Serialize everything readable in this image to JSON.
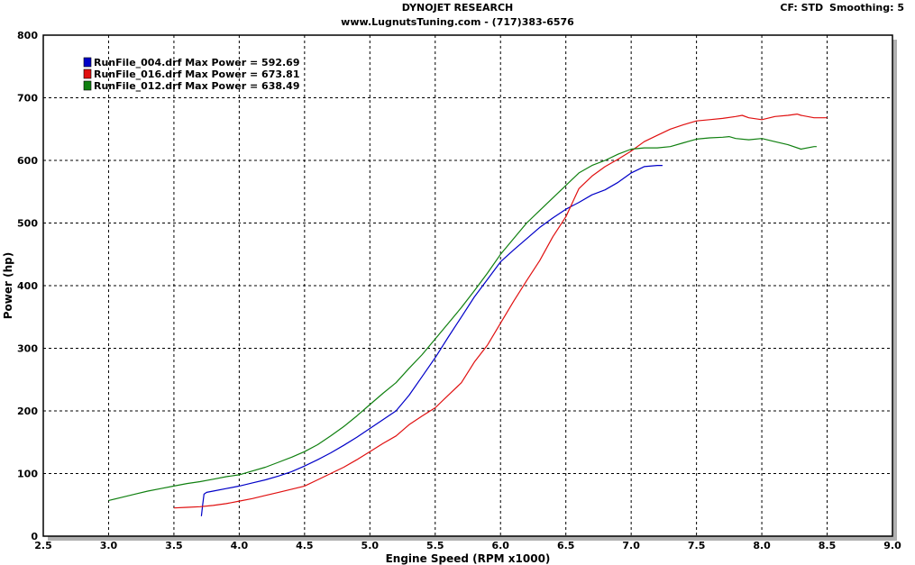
{
  "header": {
    "title": "DYNOJET RESEARCH",
    "subtitle": "www.LugnutsTuning.com - (717)383-6576",
    "cf_text": "CF: STD",
    "smoothing_text": "Smoothing: 5"
  },
  "colors": {
    "background": "#ffffff",
    "plot_border": "#000000",
    "grid": "#000000",
    "shadow": "#b0b0b0",
    "blue": "#0000c8",
    "red": "#e01010",
    "green": "#108010"
  },
  "chart_data": {
    "type": "line",
    "xlabel": "Engine Speed (RPM x1000)",
    "ylabel": "Power (hp)",
    "xlim": [
      2.5,
      9.0
    ],
    "ylim": [
      0,
      800
    ],
    "xticks": [
      "2.5",
      "3.0",
      "3.5",
      "4.0",
      "4.5",
      "5.0",
      "5.5",
      "6.0",
      "6.5",
      "7.0",
      "7.5",
      "8.0",
      "8.5",
      "9.0"
    ],
    "yticks": [
      "0",
      "100",
      "200",
      "300",
      "400",
      "500",
      "600",
      "700",
      "800"
    ],
    "grid": true,
    "grid_style": "dashed",
    "legend_placement": "top-left",
    "series": [
      {
        "name": "RunFile_004.drf Max Power = 592.69",
        "color": "blue",
        "x": [
          3.71,
          3.72,
          3.73,
          3.75,
          3.8,
          3.9,
          4.0,
          4.1,
          4.2,
          4.3,
          4.4,
          4.5,
          4.6,
          4.7,
          4.8,
          4.9,
          5.0,
          5.1,
          5.2,
          5.3,
          5.4,
          5.5,
          5.6,
          5.7,
          5.8,
          5.9,
          6.0,
          6.1,
          6.2,
          6.3,
          6.4,
          6.5,
          6.6,
          6.7,
          6.8,
          6.9,
          7.0,
          7.1,
          7.2,
          7.24
        ],
        "y": [
          32,
          50,
          67,
          70,
          72,
          76,
          80,
          85,
          90,
          96,
          103,
          112,
          122,
          133,
          145,
          158,
          172,
          186,
          200,
          225,
          255,
          285,
          318,
          350,
          382,
          410,
          438,
          457,
          475,
          493,
          508,
          522,
          533,
          545,
          553,
          565,
          580,
          590,
          592,
          592
        ]
      },
      {
        "name": "RunFile_016.drf Max Power = 673.81",
        "color": "red",
        "x": [
          3.5,
          3.6,
          3.7,
          3.8,
          3.9,
          4.0,
          4.1,
          4.2,
          4.3,
          4.4,
          4.5,
          4.6,
          4.7,
          4.8,
          4.9,
          5.0,
          5.1,
          5.2,
          5.3,
          5.4,
          5.5,
          5.6,
          5.7,
          5.8,
          5.9,
          6.0,
          6.1,
          6.2,
          6.3,
          6.4,
          6.5,
          6.6,
          6.7,
          6.8,
          6.9,
          7.0,
          7.1,
          7.2,
          7.3,
          7.4,
          7.5,
          7.6,
          7.7,
          7.8,
          7.85,
          7.9,
          8.0,
          8.1,
          8.2,
          8.27,
          8.3,
          8.4,
          8.5
        ],
        "y": [
          45,
          46,
          47,
          49,
          52,
          56,
          60,
          65,
          70,
          75,
          80,
          90,
          100,
          110,
          122,
          135,
          148,
          160,
          178,
          192,
          205,
          225,
          245,
          278,
          305,
          340,
          375,
          408,
          440,
          478,
          510,
          555,
          575,
          590,
          602,
          615,
          630,
          640,
          650,
          657,
          663,
          665,
          667,
          670,
          672,
          668,
          665,
          670,
          672,
          674,
          672,
          668,
          668
        ]
      },
      {
        "name": "RunFile_012.drf Max Power = 638.49",
        "color": "green",
        "x": [
          3.0,
          3.1,
          3.2,
          3.3,
          3.4,
          3.5,
          3.6,
          3.7,
          3.8,
          3.9,
          4.0,
          4.1,
          4.2,
          4.3,
          4.4,
          4.5,
          4.6,
          4.7,
          4.8,
          4.9,
          5.0,
          5.1,
          5.2,
          5.3,
          5.4,
          5.5,
          5.6,
          5.7,
          5.8,
          5.9,
          6.0,
          6.1,
          6.2,
          6.3,
          6.4,
          6.5,
          6.6,
          6.7,
          6.8,
          6.9,
          7.0,
          7.1,
          7.2,
          7.3,
          7.4,
          7.5,
          7.6,
          7.7,
          7.75,
          7.8,
          7.9,
          8.0,
          8.1,
          8.2,
          8.3,
          8.4,
          8.42
        ],
        "y": [
          57,
          62,
          67,
          72,
          76,
          80,
          84,
          87,
          91,
          95,
          98,
          104,
          110,
          118,
          126,
          135,
          146,
          160,
          175,
          192,
          210,
          228,
          245,
          268,
          290,
          315,
          340,
          365,
          392,
          420,
          450,
          475,
          500,
          520,
          540,
          560,
          580,
          592,
          600,
          610,
          618,
          620,
          620,
          622,
          628,
          634,
          636,
          637,
          638,
          635,
          633,
          635,
          630,
          625,
          618,
          622,
          622
        ]
      }
    ]
  }
}
